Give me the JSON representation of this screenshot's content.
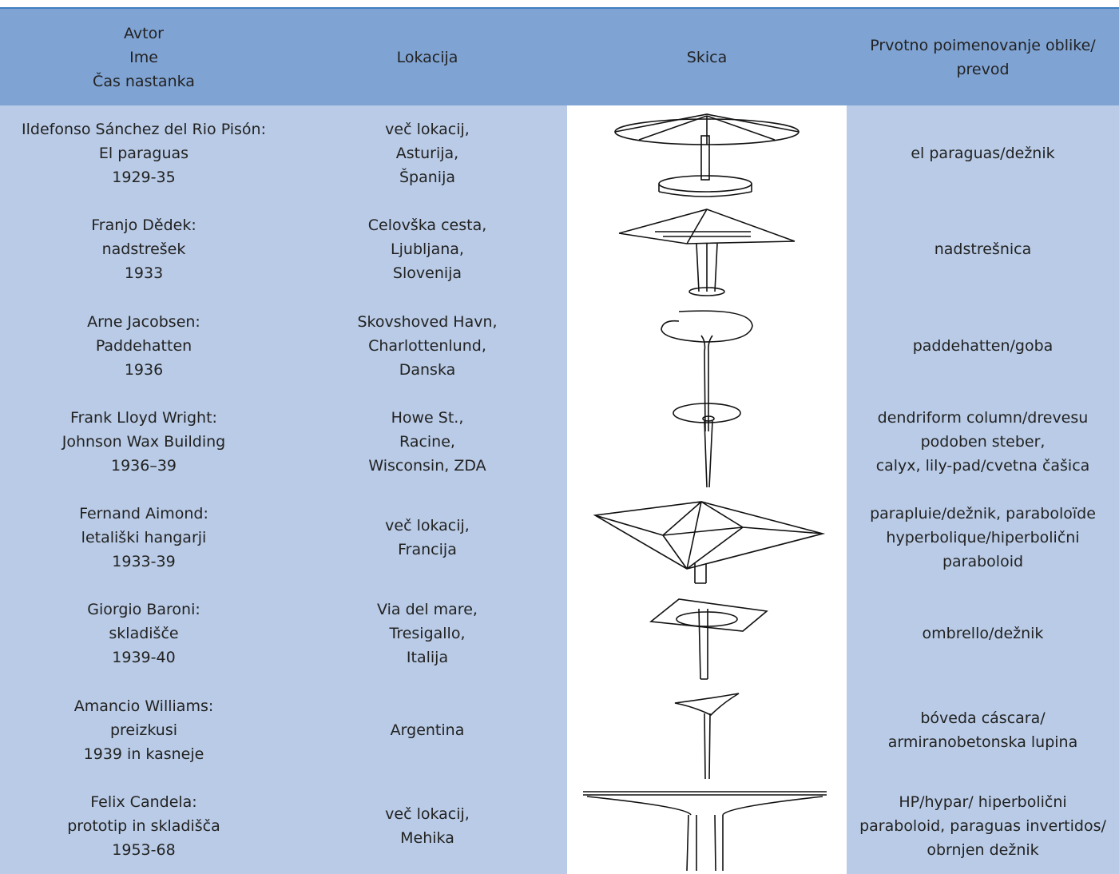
{
  "table": {
    "header": [
      [
        "Avtor",
        "Ime",
        "Čas nastanka"
      ],
      [
        "Lokacija"
      ],
      [
        "Skica"
      ],
      [
        "Prvotno poimenovanje oblike/",
        "prevod"
      ]
    ],
    "rows": [
      [
        [
          "Ildefonso Sánchez del Rio Pisón:",
          "El paraguas",
          "1929-35"
        ],
        [
          "več lokacij,",
          "Asturija,",
          "Španija"
        ],
        [
          "el paraguas/dežnik"
        ]
      ],
      [
        [
          "Franjo Dědek:",
          "nadstrešek",
          "1933"
        ],
        [
          "Celovška cesta,",
          "Ljubljana,",
          "Slovenija"
        ],
        [
          "nadstrešnica"
        ]
      ],
      [
        [
          "Arne Jacobsen:",
          "Paddehatten",
          "1936"
        ],
        [
          "Skovshoved Havn,",
          "Charlottenlund,",
          "Danska"
        ],
        [
          "paddehatten/goba"
        ]
      ],
      [
        [
          "Frank Lloyd Wright:",
          "Johnson Wax Building",
          "1936–39"
        ],
        [
          "Howe St.,",
          "Racine,",
          "Wisconsin, ZDA"
        ],
        [
          "dendriform column/drevesu",
          "podoben steber,",
          "calyx, lily-pad/cvetna čašica"
        ]
      ],
      [
        [
          "Fernand Aimond:",
          "letališki hangarji",
          "1933-39"
        ],
        [
          "več lokacij,",
          "Francija"
        ],
        [
          "parapluie/dežnik, paraboloïde",
          "hyperbolique/hiperbolični",
          "paraboloid"
        ]
      ],
      [
        [
          "Giorgio Baroni:",
          "skladišče",
          "1939-40"
        ],
        [
          "Via del mare,",
          "Tresigallo,",
          "Italija"
        ],
        [
          "ombrello/dežnik"
        ]
      ],
      [
        [
          "Amancio Williams:",
          "preizkusi",
          "1939 in kasneje"
        ],
        [
          "Argentina"
        ],
        [
          "bóveda cáscara/",
          "armiranobetonska lupina"
        ]
      ],
      [
        [
          "Felix Candela:",
          "prototip in skladišča",
          "1953-68"
        ],
        [
          "več lokacij,",
          "Mehika"
        ],
        [
          "HP/hypar/ hiperbolični",
          "paraboloid, paraguas invertidos/",
          "obrnjen dežnik"
        ]
      ]
    ]
  }
}
